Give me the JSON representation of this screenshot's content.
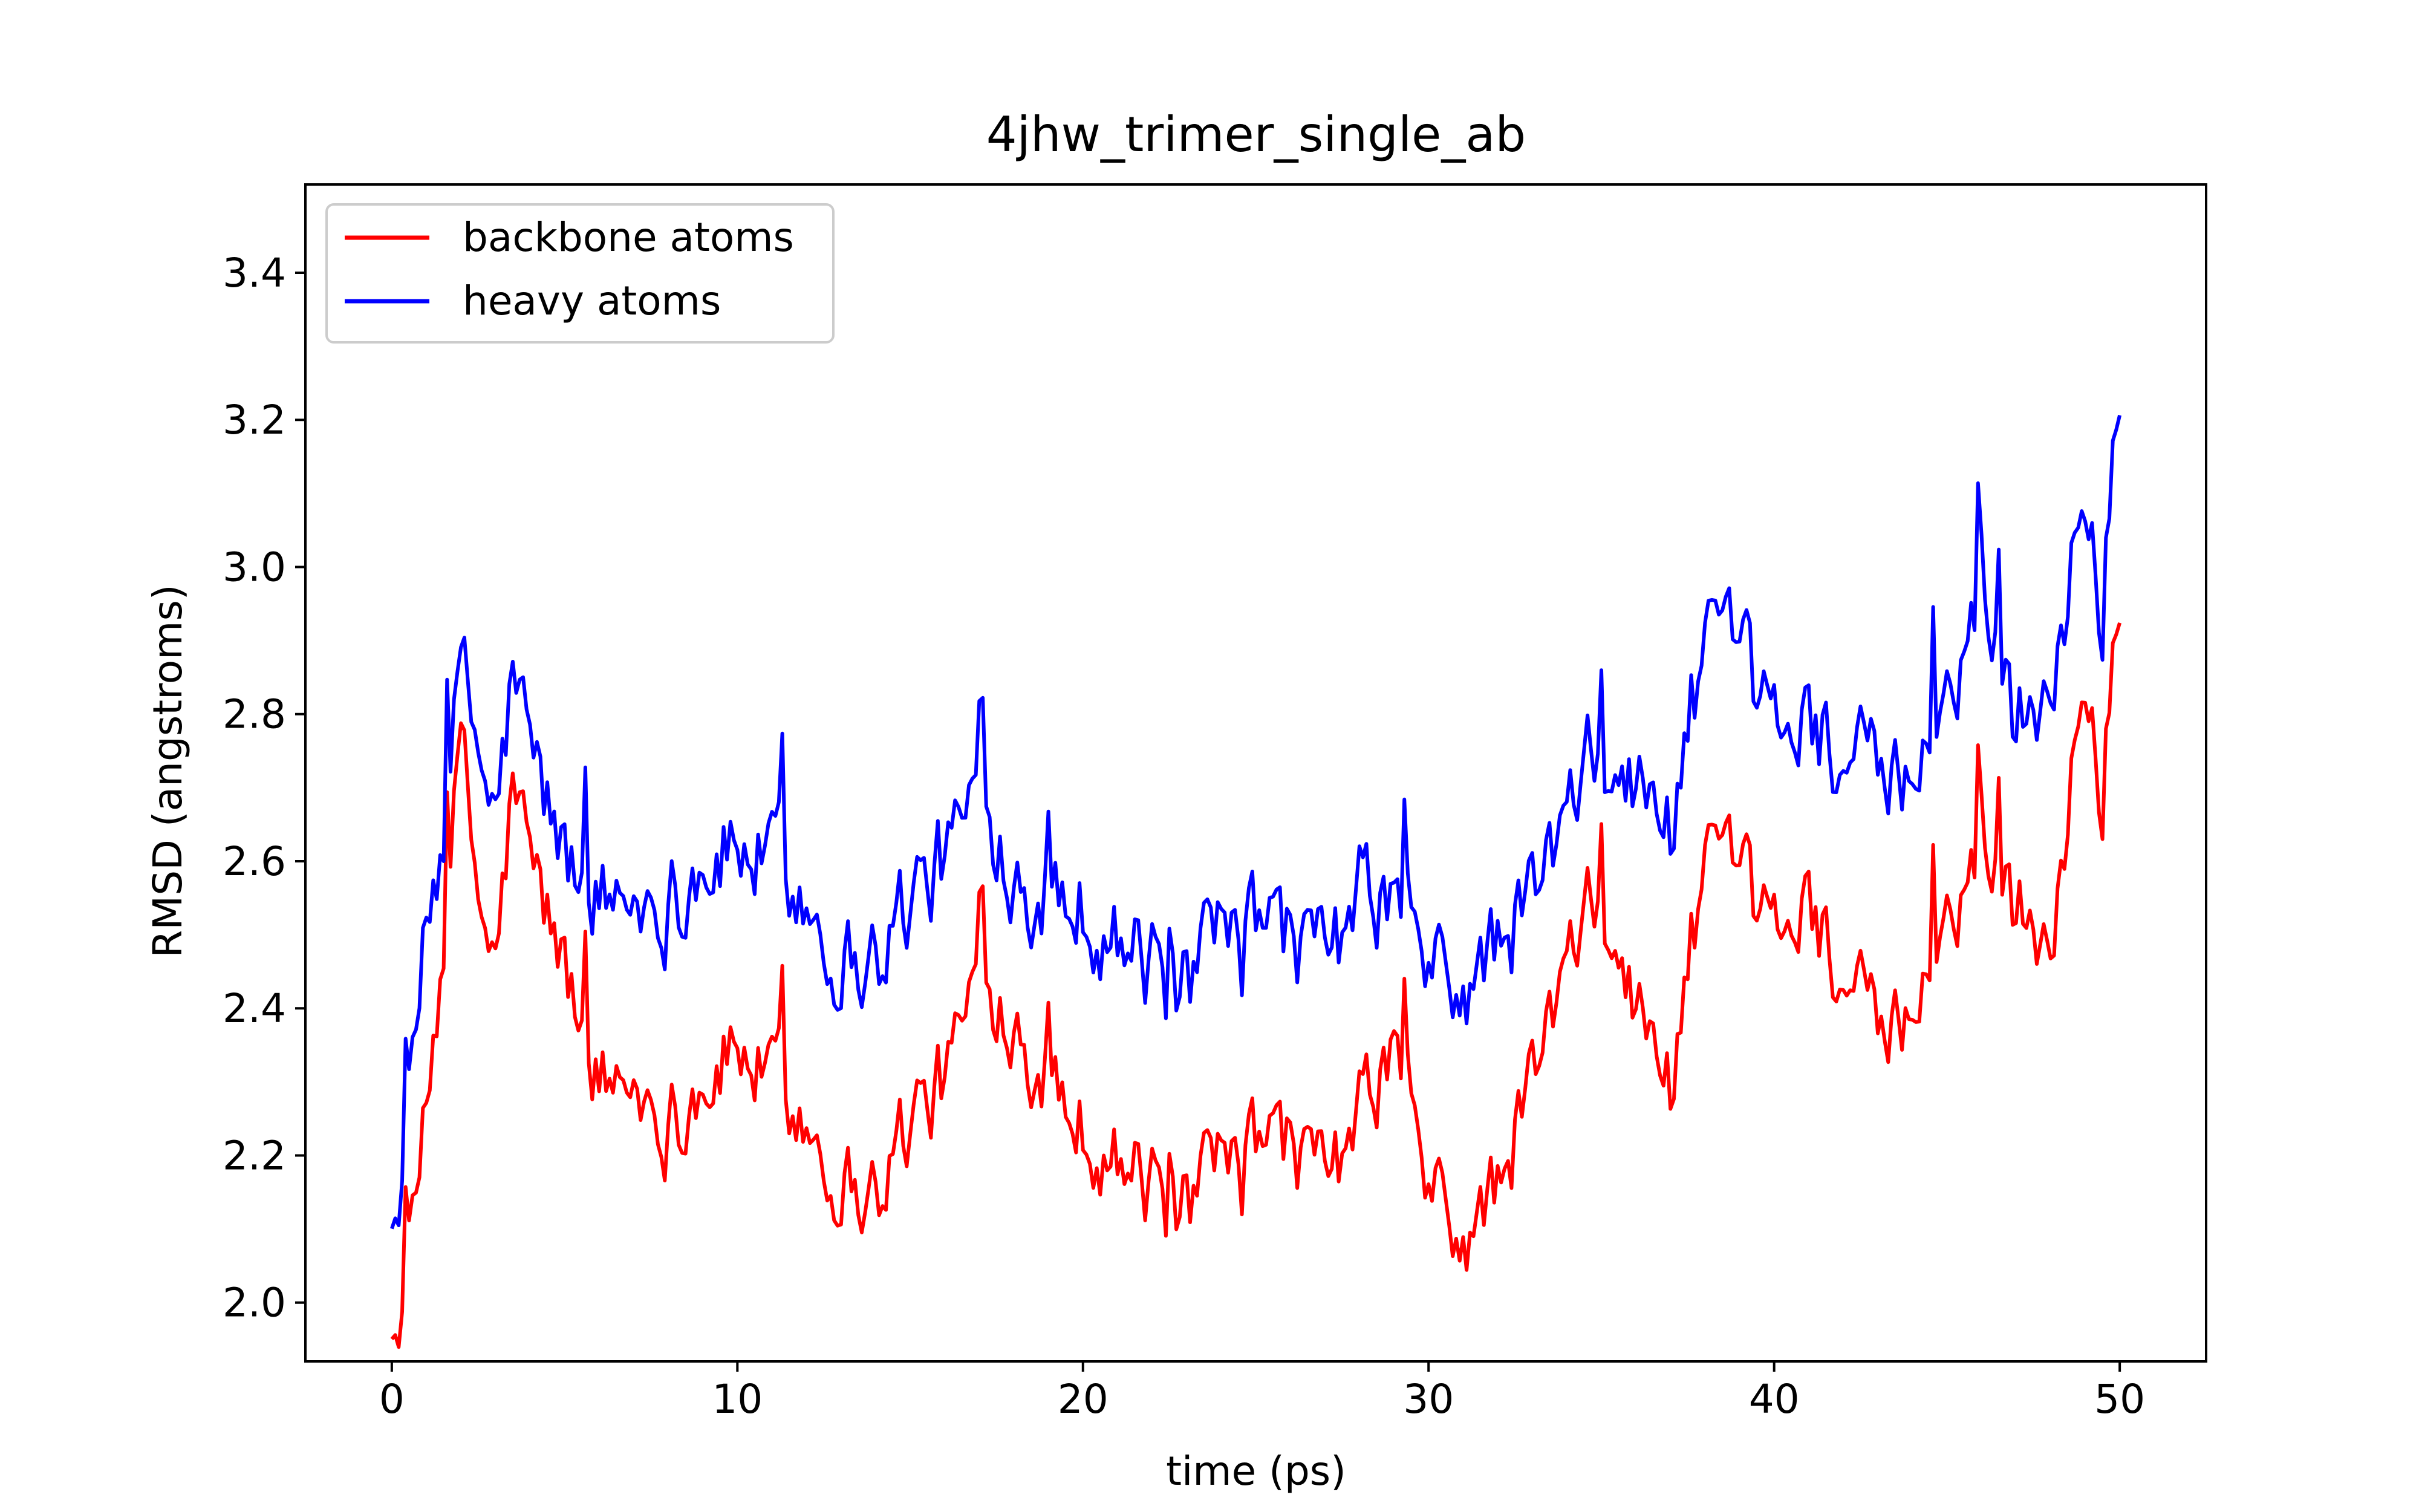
{
  "chart_data": {
    "type": "line",
    "title": "4jhw_trimer_single_ab",
    "xlabel": "time (ps)",
    "ylabel": "RMSD (angstroms)",
    "xlim": [
      -2.5,
      52.5
    ],
    "ylim": [
      1.92,
      3.52
    ],
    "x_ticks": [
      0,
      10,
      20,
      30,
      40,
      50
    ],
    "y_ticks": [
      2.0,
      2.2,
      2.4,
      2.6,
      2.8,
      3.0,
      3.2,
      3.4
    ],
    "x_tick_labels": [
      "0",
      "10",
      "20",
      "30",
      "40",
      "50"
    ],
    "y_tick_labels": [
      "2.0",
      "2.2",
      "2.4",
      "2.6",
      "2.8",
      "3.0",
      "3.2",
      "3.4"
    ],
    "grid": false,
    "legend_position": "top-left",
    "x_step": 0.1,
    "series": [
      {
        "name": "backbone atoms",
        "color": "#ff0000",
        "anchors": [
          [
            0,
            1.95
          ],
          [
            0.5,
            2.05
          ],
          [
            1,
            2.25
          ],
          [
            1.5,
            2.5
          ],
          [
            2,
            2.75
          ],
          [
            2.5,
            2.55
          ],
          [
            3,
            2.45
          ],
          [
            3.5,
            2.7
          ],
          [
            4,
            2.6
          ],
          [
            5,
            2.45
          ],
          [
            6,
            2.3
          ],
          [
            7,
            2.3
          ],
          [
            8,
            2.25
          ],
          [
            9,
            2.3
          ],
          [
            10,
            2.35
          ],
          [
            11,
            2.3
          ],
          [
            12,
            2.25
          ],
          [
            13,
            2.17
          ],
          [
            14,
            2.15
          ],
          [
            15,
            2.25
          ],
          [
            16,
            2.3
          ],
          [
            17,
            2.45
          ],
          [
            18,
            2.4
          ],
          [
            19,
            2.3
          ],
          [
            20,
            2.25
          ],
          [
            21,
            2.2
          ],
          [
            22,
            2.15
          ],
          [
            23,
            2.12
          ],
          [
            24,
            2.17
          ],
          [
            25,
            2.2
          ],
          [
            26,
            2.22
          ],
          [
            27,
            2.15
          ],
          [
            28,
            2.25
          ],
          [
            29,
            2.35
          ],
          [
            30,
            2.15
          ],
          [
            31,
            2.08
          ],
          [
            32,
            2.15
          ],
          [
            33,
            2.3
          ],
          [
            34,
            2.45
          ],
          [
            35,
            2.55
          ],
          [
            36,
            2.4
          ],
          [
            37,
            2.3
          ],
          [
            38,
            2.6
          ],
          [
            39,
            2.55
          ],
          [
            40,
            2.5
          ],
          [
            41,
            2.55
          ],
          [
            42,
            2.45
          ],
          [
            43,
            2.35
          ],
          [
            44,
            2.38
          ],
          [
            45,
            2.5
          ],
          [
            46,
            2.65
          ],
          [
            47,
            2.55
          ],
          [
            48,
            2.5
          ],
          [
            49,
            2.85
          ],
          [
            49.5,
            2.7
          ],
          [
            50,
            2.9
          ]
        ],
        "wiggle": 0.055
      },
      {
        "name": "heavy atoms",
        "color": "#0000ff",
        "anchors": [
          [
            0,
            2.1
          ],
          [
            0.5,
            2.25
          ],
          [
            1,
            2.5
          ],
          [
            1.5,
            2.65
          ],
          [
            2,
            2.85
          ],
          [
            2.5,
            2.75
          ],
          [
            3,
            2.65
          ],
          [
            3.5,
            2.85
          ],
          [
            4,
            2.75
          ],
          [
            5,
            2.6
          ],
          [
            6,
            2.55
          ],
          [
            7,
            2.55
          ],
          [
            8,
            2.55
          ],
          [
            9,
            2.6
          ],
          [
            10,
            2.62
          ],
          [
            11,
            2.6
          ],
          [
            12,
            2.55
          ],
          [
            13,
            2.47
          ],
          [
            14,
            2.47
          ],
          [
            15,
            2.55
          ],
          [
            16,
            2.6
          ],
          [
            17,
            2.7
          ],
          [
            18,
            2.6
          ],
          [
            19,
            2.55
          ],
          [
            20,
            2.55
          ],
          [
            21,
            2.5
          ],
          [
            22,
            2.45
          ],
          [
            23,
            2.42
          ],
          [
            24,
            2.48
          ],
          [
            25,
            2.5
          ],
          [
            26,
            2.5
          ],
          [
            27,
            2.45
          ],
          [
            28,
            2.55
          ],
          [
            29,
            2.55
          ],
          [
            30,
            2.45
          ],
          [
            31,
            2.42
          ],
          [
            32,
            2.48
          ],
          [
            33,
            2.55
          ],
          [
            34,
            2.65
          ],
          [
            35,
            2.75
          ],
          [
            36,
            2.7
          ],
          [
            37,
            2.65
          ],
          [
            38,
            2.9
          ],
          [
            39,
            2.85
          ],
          [
            40,
            2.78
          ],
          [
            41,
            2.8
          ],
          [
            42,
            2.75
          ],
          [
            43,
            2.7
          ],
          [
            44,
            2.7
          ],
          [
            45,
            2.8
          ],
          [
            46,
            3.0
          ],
          [
            47,
            2.8
          ],
          [
            48,
            2.85
          ],
          [
            49,
            3.1
          ],
          [
            49.5,
            2.95
          ],
          [
            50,
            3.18
          ]
        ],
        "wiggle": 0.06
      }
    ]
  }
}
